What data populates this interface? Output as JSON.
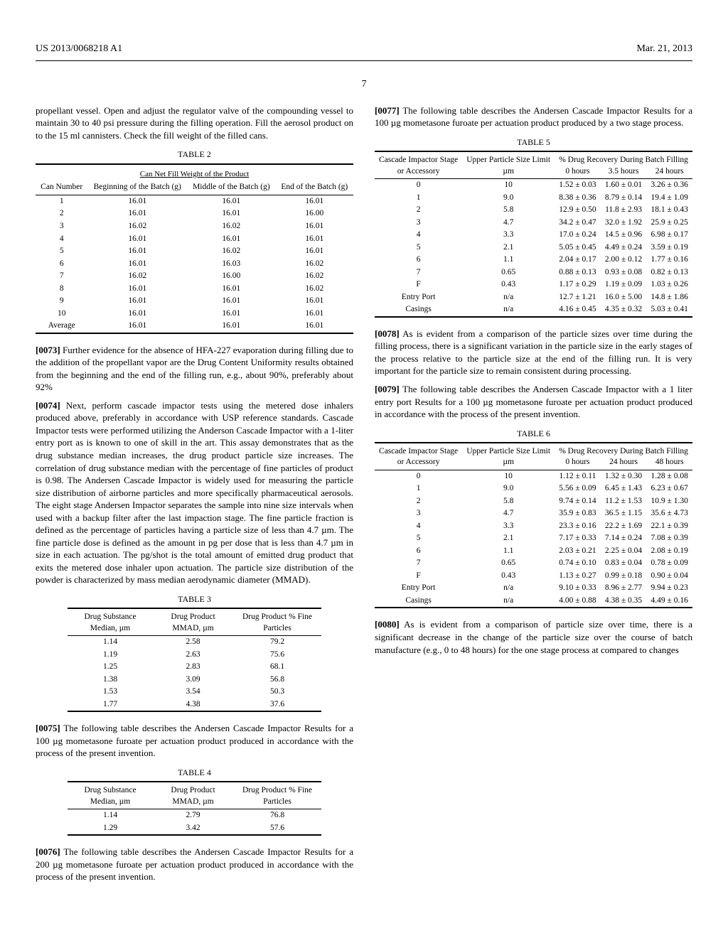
{
  "header": {
    "left": "US 2013/0068218 A1",
    "right": "Mar. 21, 2013"
  },
  "page_number": "7",
  "paragraphs": {
    "p_intro": "propellant vessel. Open and adjust the regulator valve of the compounding vessel to maintain 30 to 40 psi pressure during the filling operation. Fill the aerosol product on to the 15 ml cannisters. Check the fill weight of the filled cans.",
    "p0073_num": "[0073]",
    "p0073": " Further evidence for the absence of HFA-227 evaporation during filling due to the addition of the propellant vapor are the Drug Content Uniformity results obtained from the beginning and the end of the filling run, e.g., about 90%, preferably about 92%",
    "p0074_num": "[0074]",
    "p0074": " Next, perform cascade impactor tests using the metered dose inhalers produced above, preferably in accordance with USP reference standards. Cascade Impactor tests were performed utilizing the Anderson Cascade Impactor with a 1-liter entry port as is known to one of skill in the art. This assay demonstrates that as the drug substance median increases, the drug product particle size increases. The correlation of drug substance median with the percentage of fine particles of product is 0.98. The Andersen Cascade Impactor is widely used for measuring the particle size distribution of airborne particles and more specifically pharmaceutical aerosols. The eight stage Andersen Impactor separates the sample into nine size intervals when used with a backup filter after the last impaction stage. The fine particle fraction is defined as the percentage of particles having a particle size of less than 4.7 µm. The fine particle dose is defined as the amount in pg per dose that is less than 4.7 µm in size in each actuation. The pg/shot is the total amount of emitted drug product that exits the metered dose inhaler upon actuation. The particle size distribution of the powder is characterized by mass median aerodynamic diameter (MMAD).",
    "p0075_num": "[0075]",
    "p0075": " The following table describes the Andersen Cascade Impactor Results for a 100 µg mometasone furoate per actuation product produced in accordance with the process of the present invention.",
    "p0076_num": "[0076]",
    "p0076": " The following table describes the Andersen Cascade Impactor Results for a 200 µg mometasone furoate per actuation product produced in accordance with the process of the present invention.",
    "p0077_num": "[0077]",
    "p0077": " The following table describes the Andersen Cascade Impactor Results for a 100 µg mometasone furoate per actuation product produced by a two stage process.",
    "p0078_num": "[0078]",
    "p0078": " As is evident from a comparison of the particle sizes over time during the filling process, there is a significant variation in the particle size in the early stages of the process relative to the particle size at the end of the filling run. It is very important for the particle size to remain consistent during processing.",
    "p0079_num": "[0079]",
    "p0079": " The following table describes the Andersen Cascade Impactor with a 1 liter entry port Results for a 100 µg mometasone furoate per actuation product produced in accordance with the process of the present invention.",
    "p0080_num": "[0080]",
    "p0080": " As is evident from a comparison of particle size over time, there is a significant decrease in the change of the particle size over the course of batch manufacture (e.g., 0 to 48 hours) for the one stage process at compared to changes"
  },
  "table2": {
    "label": "TABLE 2",
    "subtitle": "Can Net Fill Weight of the Product",
    "headers": [
      "Can Number",
      "Beginning of the Batch (g)",
      "Middle of the Batch (g)",
      "End of the Batch (g)"
    ],
    "rows": [
      [
        "1",
        "16.01",
        "16.01",
        "16.01"
      ],
      [
        "2",
        "16.01",
        "16.01",
        "16.00"
      ],
      [
        "3",
        "16.02",
        "16.02",
        "16.01"
      ],
      [
        "4",
        "16.01",
        "16.01",
        "16.01"
      ],
      [
        "5",
        "16.01",
        "16.02",
        "16.01"
      ],
      [
        "6",
        "16.01",
        "16.03",
        "16.02"
      ],
      [
        "7",
        "16.02",
        "16.00",
        "16.02"
      ],
      [
        "8",
        "16.01",
        "16.01",
        "16.02"
      ],
      [
        "9",
        "16.01",
        "16.01",
        "16.01"
      ],
      [
        "10",
        "16.01",
        "16.01",
        "16.01"
      ],
      [
        "Average",
        "16.01",
        "16.01",
        "16.01"
      ]
    ]
  },
  "table3": {
    "label": "TABLE 3",
    "headers": [
      "Drug Substance Median, µm",
      "Drug Product MMAD, µm",
      "Drug Product % Fine Particles"
    ],
    "rows": [
      [
        "1.14",
        "2.58",
        "79.2"
      ],
      [
        "1.19",
        "2.63",
        "75.6"
      ],
      [
        "1.25",
        "2.83",
        "68.1"
      ],
      [
        "1.38",
        "3.09",
        "56.8"
      ],
      [
        "1.53",
        "3.54",
        "50.3"
      ],
      [
        "1.77",
        "4.38",
        "37.6"
      ]
    ]
  },
  "table4": {
    "label": "TABLE 4",
    "headers": [
      "Drug Substance Median, µm",
      "Drug Product MMAD, µm",
      "Drug Product % Fine Particles"
    ],
    "rows": [
      [
        "1.14",
        "2.79",
        "76.8"
      ],
      [
        "1.29",
        "3.42",
        "57.6"
      ]
    ]
  },
  "table5": {
    "label": "TABLE 5",
    "h1": [
      "Cascade Impactor Stage",
      "Upper Particle Size Limit",
      "% Drug Recovery During Batch Filling"
    ],
    "h2": [
      "or Accessory",
      "µm",
      "0 hours",
      "3.5 hours",
      "24 hours"
    ],
    "rows": [
      [
        "0",
        "10",
        "1.52 ± 0.03",
        "1.60 ± 0.01",
        "3.26 ± 0.36"
      ],
      [
        "1",
        "9.0",
        "8.38 ± 0.36",
        "8.79 ± 0.14",
        "19.4 ± 1.09"
      ],
      [
        "2",
        "5.8",
        "12.9 ± 0.50",
        "11.8 ± 2.93",
        "18.1 ± 0.43"
      ],
      [
        "3",
        "4.7",
        "34.2 ± 0.47",
        "32.0 ± 1.92",
        "25.9 ± 0.25"
      ],
      [
        "4",
        "3.3",
        "17.0 ± 0.24",
        "14.5 ± 0.96",
        "6.98 ± 0.17"
      ],
      [
        "5",
        "2.1",
        "5.05 ± 0.45",
        "4.49 ± 0.24",
        "3.59 ± 0.19"
      ],
      [
        "6",
        "1.1",
        "2.04 ± 0.17",
        "2.00 ± 0.12",
        "1.77 ± 0.16"
      ],
      [
        "7",
        "0.65",
        "0.88 ± 0.13",
        "0.93 ± 0.08",
        "0.82 ± 0.13"
      ],
      [
        "F",
        "0.43",
        "1.17 ± 0.29",
        "1.19 ± 0.09",
        "1.03 ± 0.26"
      ],
      [
        "Entry Port",
        "n/a",
        "12.7 ± 1.21",
        "16.0 ± 5.00",
        "14.8 ± 1.86"
      ],
      [
        "Casings",
        "n/a",
        "4.16 ± 0.45",
        "4.35 ± 0.32",
        "5.03 ± 0.41"
      ]
    ]
  },
  "table6": {
    "label": "TABLE 6",
    "h1": [
      "Cascade Impactor Stage",
      "Upper Particle Size Limit",
      "% Drug Recovery During Batch Filling"
    ],
    "h2": [
      "or Accessory",
      "µm",
      "0 hours",
      "24 hours",
      "48 hours"
    ],
    "rows": [
      [
        "0",
        "10",
        "1.12 ± 0.11",
        "1.32 ± 0.30",
        "1.28 ± 0.08"
      ],
      [
        "1",
        "9.0",
        "5.56 ± 0.09",
        "6.45 ± 1.43",
        "6.23 ± 0.67"
      ],
      [
        "2",
        "5.8",
        "9.74 ± 0.14",
        "11.2 ± 1.53",
        "10.9 ± 1.30"
      ],
      [
        "3",
        "4.7",
        "35.9 ± 0.83",
        "36.5 ± 1.15",
        "35.6 ± 4.73"
      ],
      [
        "4",
        "3.3",
        "23.3 ± 0.16",
        "22.2 ± 1.69",
        "22.1 ± 0.39"
      ],
      [
        "5",
        "2.1",
        "7.17 ± 0.33",
        "7.14 ± 0.24",
        "7.08 ± 0.39"
      ],
      [
        "6",
        "1.1",
        "2.03 ± 0.21",
        "2.25 ± 0.04",
        "2.08 ± 0.19"
      ],
      [
        "7",
        "0.65",
        "0.74 ± 0.10",
        "0.83 ± 0.04",
        "0.78 ± 0.09"
      ],
      [
        "F",
        "0.43",
        "1.13 ± 0.27",
        "0.99 ± 0.18",
        "0.90 ± 0.04"
      ],
      [
        "Entry Port",
        "n/a",
        "9.10 ± 0.33",
        "8.96 ± 2.77",
        "9.94 ± 0.23"
      ],
      [
        "Casings",
        "n/a",
        "4.00 ± 0.88",
        "4.38 ± 0.35",
        "4.49 ± 0.16"
      ]
    ]
  }
}
